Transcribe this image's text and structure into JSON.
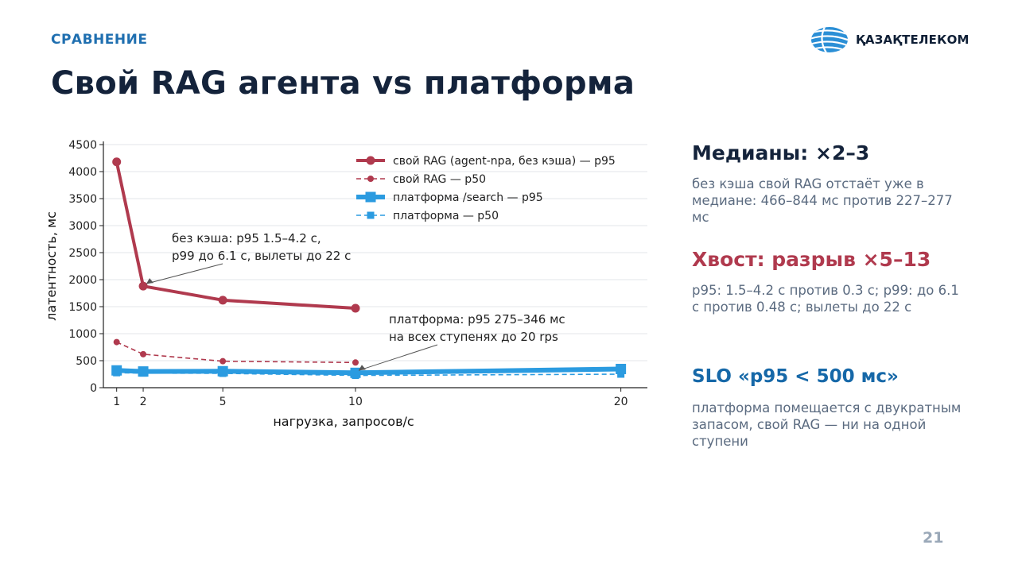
{
  "header": {
    "kicker": "СРАВНЕНИЕ",
    "title": "Свой RAG агента vs платформа",
    "logo_text": "ҚАЗАҚТЕЛЕКОМ"
  },
  "colors": {
    "red": "#b03a4e",
    "blue": "#2b9be0",
    "navy": "#14233b",
    "accent_blue": "#1668a8"
  },
  "chart_data": {
    "type": "line",
    "xlabel": "нагрузка, запросов/с",
    "ylabel": "латентность, мс",
    "ylim": [
      0,
      4500
    ],
    "yticks": [
      0,
      500,
      1000,
      1500,
      2000,
      2500,
      3000,
      3500,
      4000,
      4500
    ],
    "xticks": [
      1,
      2,
      5,
      10,
      20
    ],
    "grid": "horizontal",
    "legend_position": "top-right",
    "series": [
      {
        "name": "свой RAG (agent-npa, без кэша) — p95",
        "x": [
          1,
          2,
          5,
          10
        ],
        "values": [
          4180,
          1880,
          1620,
          1470
        ],
        "color": "#b03a4e",
        "style": "solid-circle"
      },
      {
        "name": "свой RAG — p50",
        "x": [
          1,
          2,
          5,
          10
        ],
        "values": [
          844,
          620,
          490,
          466
        ],
        "color": "#b03a4e",
        "style": "dashed-circle"
      },
      {
        "name": "платформа /search — p95",
        "x": [
          1,
          2,
          5,
          10,
          20
        ],
        "values": [
          320,
          300,
          305,
          275,
          346
        ],
        "color": "#2b9be0",
        "style": "solid-square"
      },
      {
        "name": "платформа — p50",
        "x": [
          1,
          2,
          5,
          10,
          20
        ],
        "values": [
          277,
          270,
          265,
          227,
          250
        ],
        "color": "#2b9be0",
        "style": "dashed-square"
      }
    ],
    "annotations": [
      {
        "lines": [
          "без кэша: p95 1.5–4.2 с,",
          "p99 до 6.1 с, вылеты до 22 с"
        ],
        "point": {
          "x": 2,
          "y": 1880
        }
      },
      {
        "lines": [
          "платформа: p95 275–346 мс",
          "на всех ступенях до 20 rps"
        ],
        "point": {
          "x": 10,
          "y": 275
        }
      }
    ]
  },
  "side": {
    "b1_title": "Медианы: ×2–3",
    "b1_text": "без кэша свой RAG отстаёт уже в медиане: 466–844 мс против 227–277 мс",
    "b2_title": "Хвост: разрыв ×5–13",
    "b2_text": "p95: 1.5–4.2 с против 0.3 с; p99: до 6.1 с против 0.48 с; вылеты до 22 с",
    "b3_title": "SLO «p95 < 500 мс»",
    "b3_text": "платформа помещается с двукратным запасом, свой RAG — ни на одной ступени"
  },
  "page_number": "21"
}
